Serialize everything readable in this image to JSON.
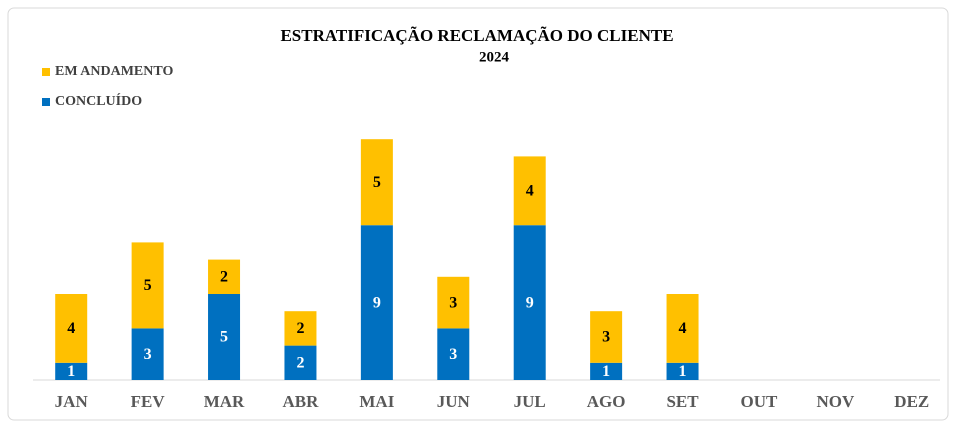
{
  "chart_data": {
    "type": "stacked_bar",
    "title": "ESTRATIFICAÇÃO RECLAMAÇÃO DO CLIENTE",
    "subtitle": "2024",
    "categories": [
      "JAN",
      "FEV",
      "MAR",
      "ABR",
      "MAI",
      "JUN",
      "JUL",
      "AGO",
      "SET",
      "OUT",
      "NOV",
      "DEZ"
    ],
    "series": [
      {
        "name": "CONCLUÍDO",
        "color": "#0070c0",
        "values": [
          1,
          3,
          5,
          2,
          9,
          3,
          9,
          1,
          1,
          null,
          null,
          null
        ]
      },
      {
        "name": "EM ANDAMENTO",
        "color": "#ffc000",
        "values": [
          4,
          5,
          2,
          2,
          5,
          3,
          4,
          3,
          4,
          null,
          null,
          null
        ]
      }
    ],
    "legend": "top-left"
  }
}
